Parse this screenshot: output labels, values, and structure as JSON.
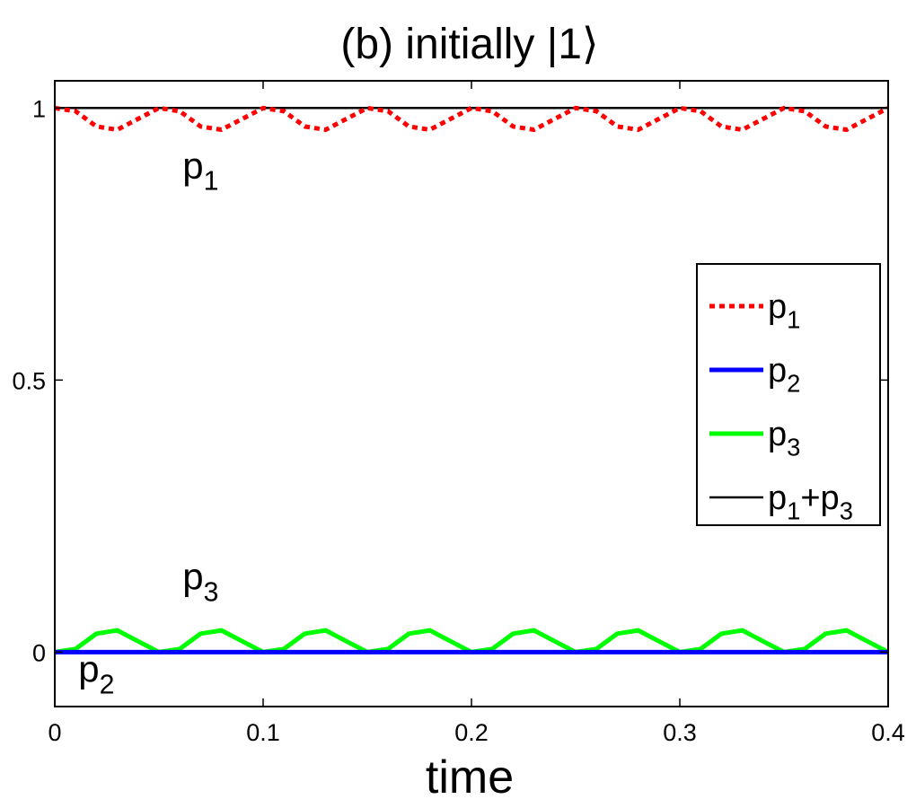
{
  "chart_data": {
    "type": "line",
    "title": "(b)  initially |1⟩",
    "xlabel": "time",
    "ylabel": "",
    "xlim": [
      0,
      0.4
    ],
    "ylim": [
      -0.1,
      1.05
    ],
    "grid": false,
    "x_ticks": [
      {
        "value": 0,
        "label": "0"
      },
      {
        "value": 0.1,
        "label": "0.1"
      },
      {
        "value": 0.2,
        "label": "0.2"
      },
      {
        "value": 0.3,
        "label": "0.3"
      },
      {
        "value": 0.4,
        "label": "0.4"
      }
    ],
    "y_ticks": [
      {
        "value": 0,
        "label": "0"
      },
      {
        "value": 0.5,
        "label": "0.5"
      },
      {
        "value": 1,
        "label": "1"
      }
    ],
    "x": [
      0,
      0.01,
      0.02,
      0.03,
      0.04,
      0.05,
      0.06,
      0.07,
      0.08,
      0.09,
      0.1,
      0.11,
      0.12,
      0.13,
      0.14,
      0.15,
      0.16,
      0.17,
      0.18,
      0.19,
      0.2,
      0.21,
      0.22,
      0.23,
      0.24,
      0.25,
      0.26,
      0.27,
      0.28,
      0.29,
      0.3,
      0.31,
      0.32,
      0.33,
      0.34,
      0.35,
      0.36,
      0.37,
      0.38,
      0.39,
      0.4
    ],
    "series": [
      {
        "name": "p",
        "sub": "1",
        "color": "#ff0000",
        "style": "dotted",
        "width": 5,
        "values": [
          1.0,
          0.994,
          0.966,
          0.96,
          0.98,
          1.0,
          0.994,
          0.966,
          0.96,
          0.98,
          1.0,
          0.994,
          0.966,
          0.96,
          0.98,
          1.0,
          0.994,
          0.966,
          0.96,
          0.98,
          1.0,
          0.994,
          0.966,
          0.96,
          0.98,
          1.0,
          0.994,
          0.966,
          0.96,
          0.98,
          1.0,
          0.994,
          0.966,
          0.96,
          0.98,
          1.0,
          0.994,
          0.966,
          0.96,
          0.98,
          1.0
        ]
      },
      {
        "name": "p",
        "sub": "2",
        "color": "#0000ff",
        "style": "solid",
        "width": 5,
        "values": [
          0,
          0,
          0,
          0,
          0,
          0,
          0,
          0,
          0,
          0,
          0,
          0,
          0,
          0,
          0,
          0,
          0,
          0,
          0,
          0,
          0,
          0,
          0,
          0,
          0,
          0,
          0,
          0,
          0,
          0,
          0,
          0,
          0,
          0,
          0,
          0,
          0,
          0,
          0,
          0,
          0
        ]
      },
      {
        "name": "p",
        "sub": "3",
        "color": "#00ff00",
        "style": "solid",
        "width": 5,
        "values": [
          0.0,
          0.006,
          0.034,
          0.04,
          0.02,
          0.0,
          0.006,
          0.034,
          0.04,
          0.02,
          0.0,
          0.006,
          0.034,
          0.04,
          0.02,
          0.0,
          0.006,
          0.034,
          0.04,
          0.02,
          0.0,
          0.006,
          0.034,
          0.04,
          0.02,
          0.0,
          0.006,
          0.034,
          0.04,
          0.02,
          0.0,
          0.006,
          0.034,
          0.04,
          0.02,
          0.0,
          0.006,
          0.034,
          0.04,
          0.02,
          0.0
        ]
      },
      {
        "name": "p",
        "sub": "1",
        "name2": "+p",
        "sub2": "3",
        "color": "#000000",
        "style": "solid",
        "width": 2.5,
        "values": [
          1,
          1,
          1,
          1,
          1,
          1,
          1,
          1,
          1,
          1,
          1,
          1,
          1,
          1,
          1,
          1,
          1,
          1,
          1,
          1,
          1,
          1,
          1,
          1,
          1,
          1,
          1,
          1,
          1,
          1,
          1,
          1,
          1,
          1,
          1,
          1,
          1,
          1,
          1,
          1,
          1
        ]
      }
    ],
    "legend_position": "right",
    "annotations": [
      {
        "text": "p",
        "sub": "1",
        "x": 0.07,
        "y": 0.87
      },
      {
        "text": "p",
        "sub": "3",
        "x": 0.07,
        "y": 0.115
      },
      {
        "text": "p",
        "sub": "2",
        "x": 0.02,
        "y": -0.055
      }
    ]
  }
}
